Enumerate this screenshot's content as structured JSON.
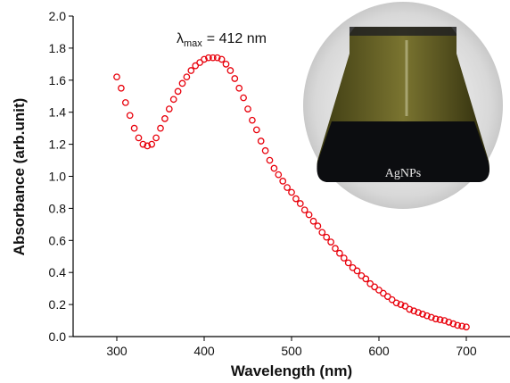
{
  "chart_data": {
    "type": "scatter",
    "xlabel": "Wavelength (nm)",
    "ylabel": "Absorbance (arb.unit)",
    "annotation": {
      "symbol": "λ",
      "subscript": "max",
      "text": "= 412 nm"
    },
    "inset_label": "AgNPs",
    "xlim": [
      250,
      750
    ],
    "xticks": [
      300,
      400,
      500,
      600,
      700
    ],
    "ylim": [
      0,
      2
    ],
    "yticks": [
      {
        "value": 0,
        "label": "0.0"
      },
      0.2,
      0.4,
      0.6,
      0.8,
      {
        "value": 1,
        "label": "1.0"
      },
      1.2,
      1.4,
      1.6,
      1.8,
      {
        "value": 2,
        "label": "2.0"
      }
    ],
    "series": [
      {
        "color": "#e8000b",
        "x": [
          300,
          305,
          310,
          315,
          320,
          325,
          330,
          335,
          340,
          345,
          350,
          355,
          360,
          365,
          370,
          375,
          380,
          385,
          390,
          395,
          400,
          405,
          410,
          415,
          420,
          425,
          430,
          435,
          440,
          445,
          450,
          455,
          460,
          465,
          470,
          475,
          480,
          485,
          490,
          495,
          500,
          505,
          510,
          515,
          520,
          525,
          530,
          535,
          540,
          545,
          550,
          555,
          560,
          565,
          570,
          575,
          580,
          585,
          590,
          595,
          600,
          605,
          610,
          615,
          620,
          625,
          630,
          635,
          640,
          645,
          650,
          655,
          660,
          665,
          670,
          675,
          680,
          685,
          690,
          695,
          700
        ],
        "values": [
          1.62,
          1.55,
          1.46,
          1.38,
          1.3,
          1.24,
          1.2,
          1.19,
          1.2,
          1.24,
          1.3,
          1.36,
          1.42,
          1.48,
          1.53,
          1.58,
          1.62,
          1.66,
          1.69,
          1.71,
          1.73,
          1.74,
          1.74,
          1.74,
          1.73,
          1.7,
          1.66,
          1.61,
          1.55,
          1.49,
          1.42,
          1.35,
          1.29,
          1.22,
          1.16,
          1.1,
          1.05,
          1.01,
          0.97,
          0.93,
          0.9,
          0.86,
          0.83,
          0.79,
          0.76,
          0.72,
          0.69,
          0.65,
          0.62,
          0.59,
          0.55,
          0.52,
          0.49,
          0.46,
          0.43,
          0.41,
          0.38,
          0.36,
          0.33,
          0.31,
          0.29,
          0.27,
          0.25,
          0.23,
          0.21,
          0.2,
          0.19,
          0.17,
          0.16,
          0.15,
          0.14,
          0.13,
          0.12,
          0.11,
          0.105,
          0.1,
          0.09,
          0.08,
          0.07,
          0.065,
          0.06
        ]
      }
    ]
  }
}
